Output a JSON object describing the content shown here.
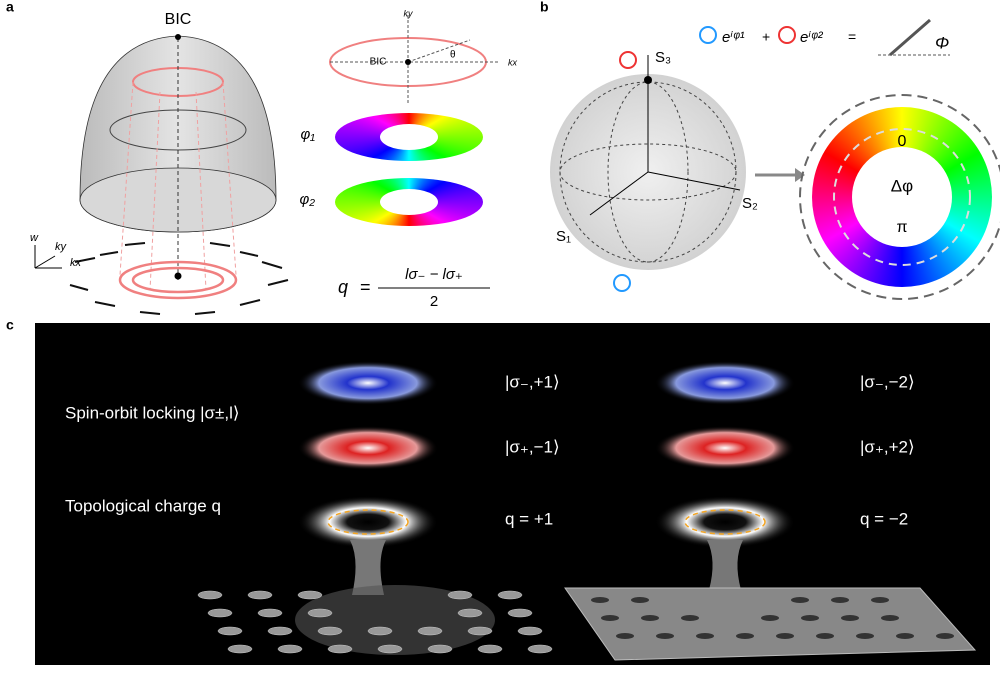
{
  "panel_a": {
    "label": "a",
    "bic": "BIC",
    "ring_ky": "ky",
    "ring_kx": "kx",
    "ring_bic": "BIC",
    "theta": "θ",
    "axis_w": "w",
    "axis_ky": "ky",
    "axis_kx": "kx",
    "phi1": "φ₁",
    "phi2": "φ₂",
    "formula": {
      "lhs": "q",
      "eq": "=",
      "numerator": "lσ₋ − lσ₊",
      "denominator": "2"
    }
  },
  "panel_b": {
    "label": "b",
    "s1": "S₁",
    "s2": "S₂",
    "s3": "S₃",
    "formula": {
      "term1": "eⁱᵠ¹",
      "plus": "+",
      "term2": "eⁱᵠ²",
      "eq": "=",
      "angle": "Φ"
    },
    "ring": {
      "top": "0",
      "center": "Δφ",
      "bottom": "π"
    }
  },
  "panel_c": {
    "label": "c",
    "states": [
      "|σ₋,+1⟩",
      "|σ₋,−2⟩",
      "|σ₊,−1⟩",
      "|σ₊,+2⟩"
    ],
    "spin_orbit": "Spin-orbit locking |σ±,l⟩",
    "topological": "Topological charge q",
    "charges": [
      "q = +1",
      "q = −2"
    ]
  }
}
